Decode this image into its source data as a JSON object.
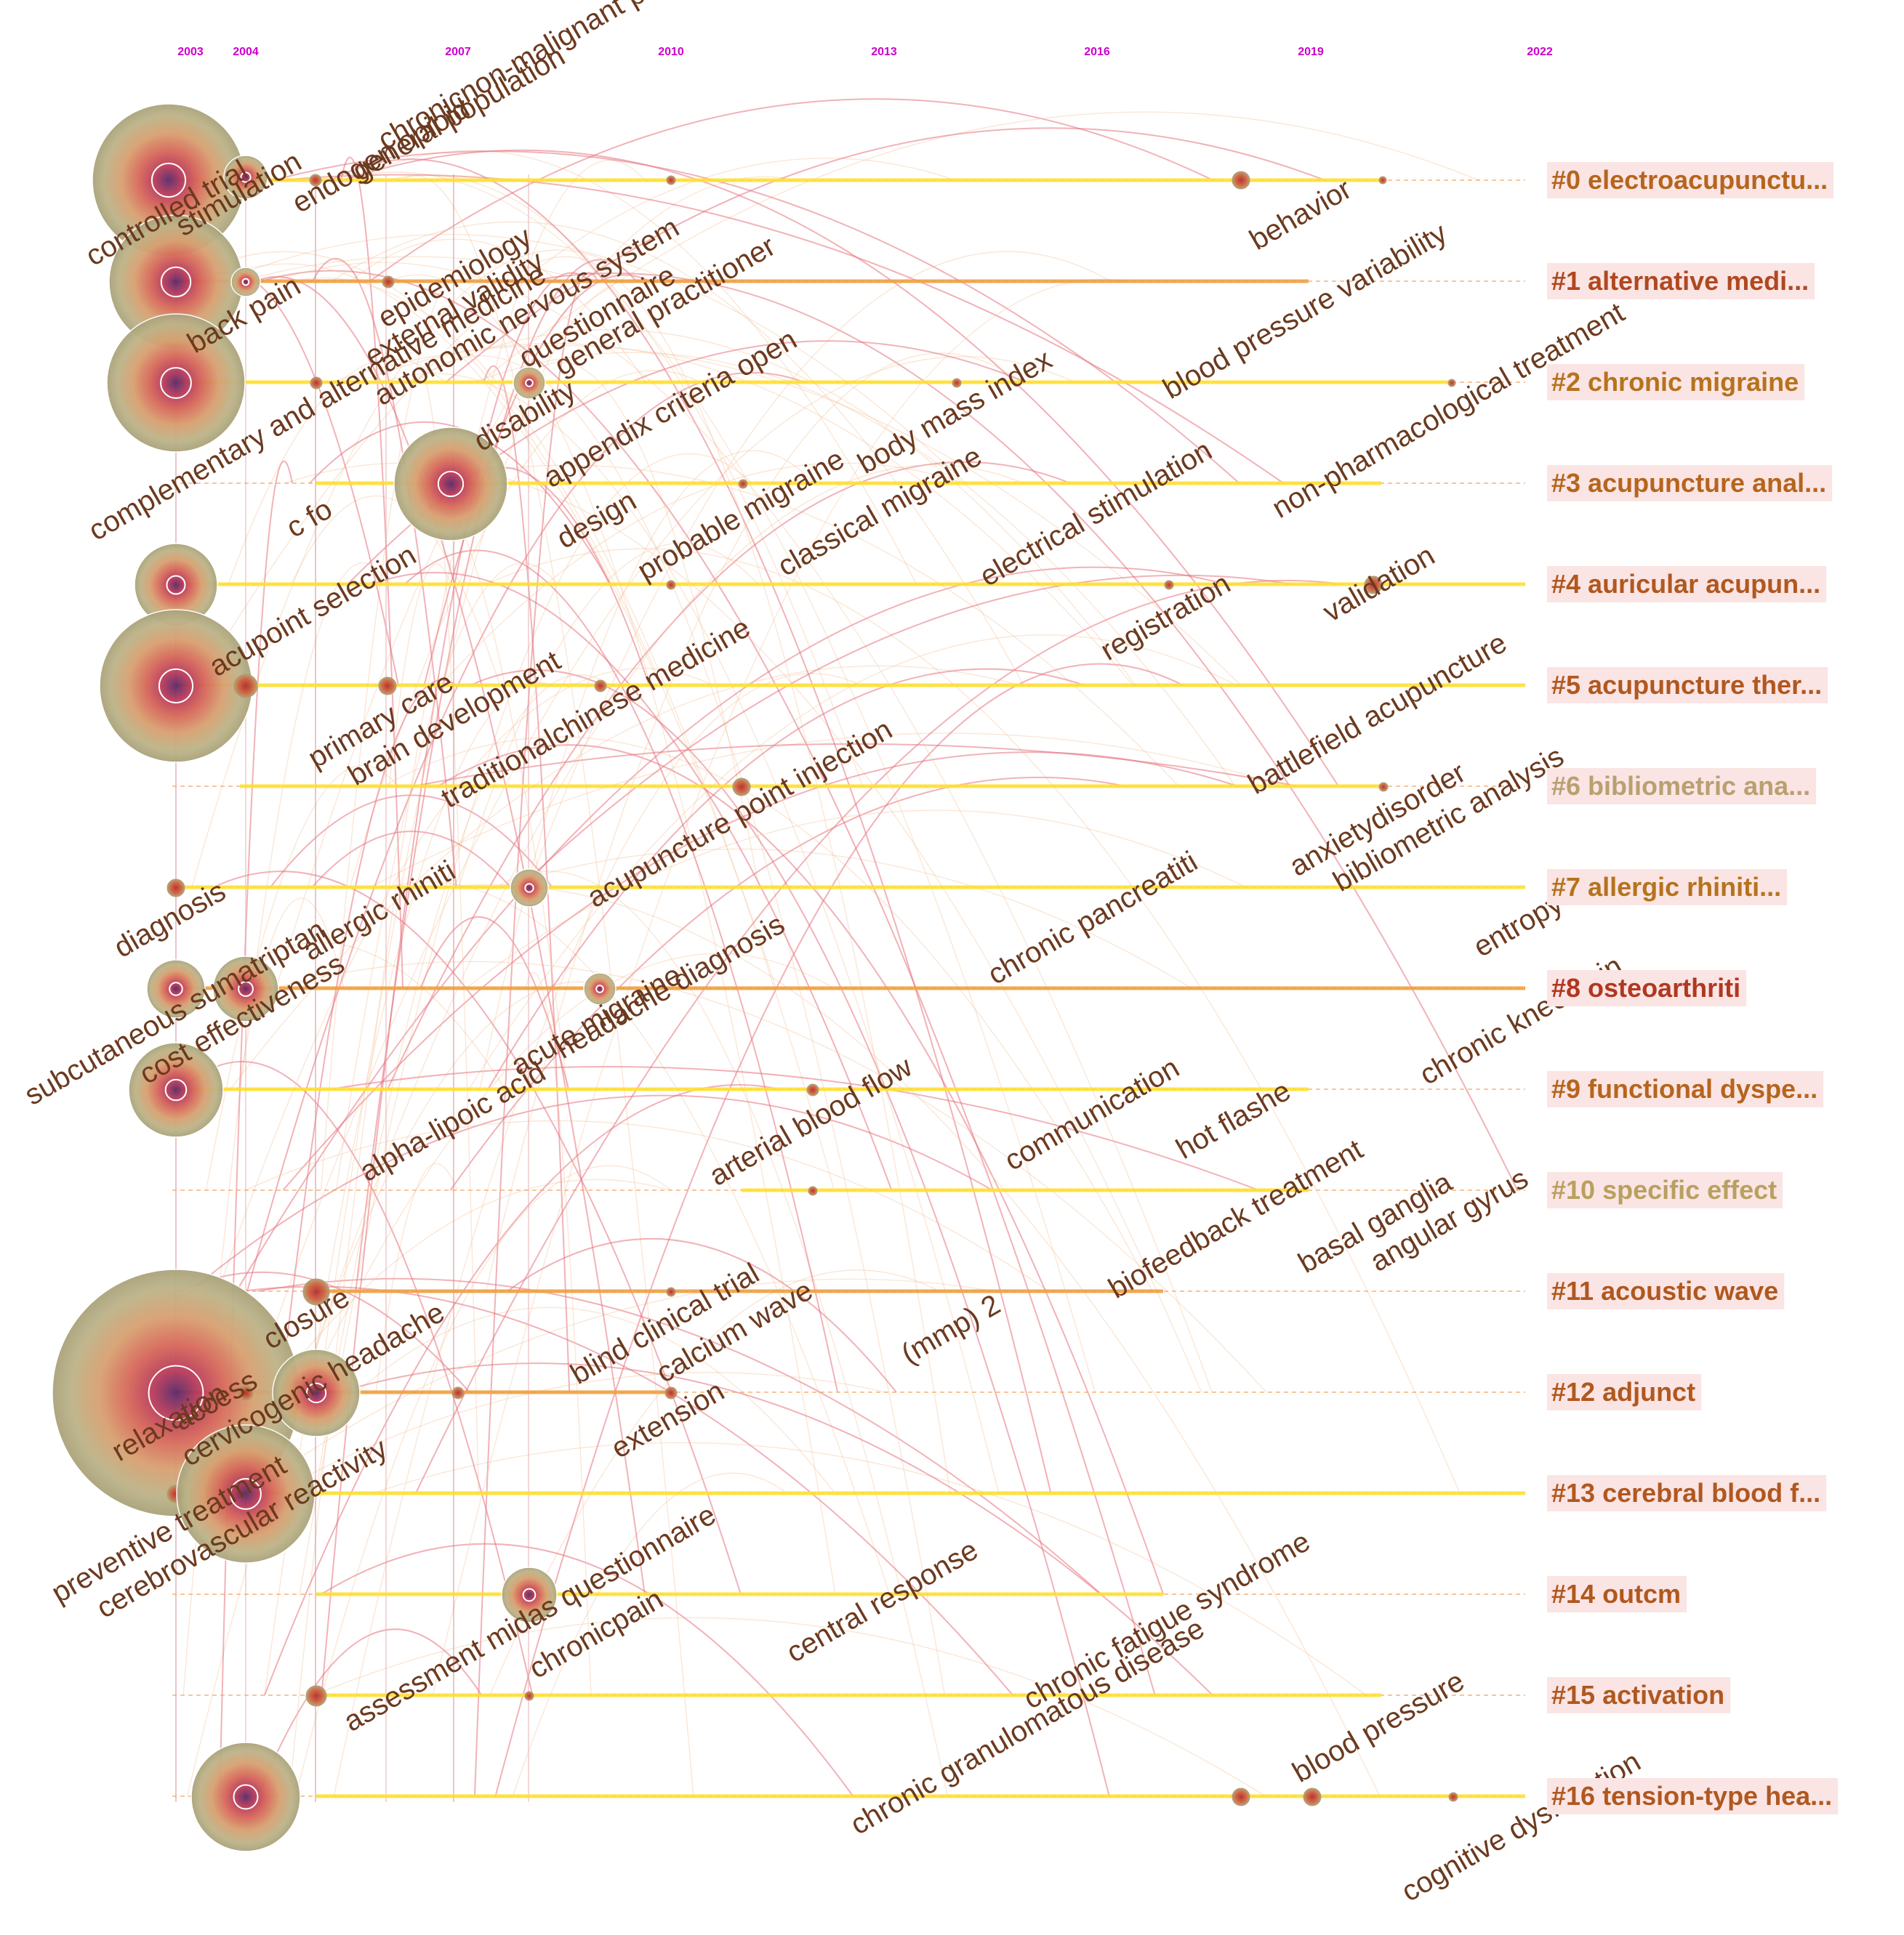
{
  "years": [
    "2003",
    "2004",
    "2007",
    "2010",
    "2013",
    "2016",
    "2019",
    "2022"
  ],
  "colors": {
    "year_label": "#cc00cc",
    "cluster_label_bg": "#fbe4e4",
    "keyword_text": "#6b3a1f",
    "timeline_main": "#ffe033",
    "timeline_dashed": "#f5a05a",
    "link": "#e5737d",
    "node_outer": "#b5ac7e",
    "node_mid": "#e08a5a",
    "node_inner": "#8a2f5a"
  },
  "clusters": [
    {
      "label": "#0 electroacupunctu...",
      "color": "#b5651d"
    },
    {
      "label": "#1 alternative medi...",
      "color": "#b0481f"
    },
    {
      "label": "#2 chronic migraine",
      "color": "#b5731d"
    },
    {
      "label": "#3 acupuncture anal...",
      "color": "#b5651d"
    },
    {
      "label": "#4 auricular acupun...",
      "color": "#b0581f"
    },
    {
      "label": "#5 acupuncture ther...",
      "color": "#b0581f"
    },
    {
      "label": "#6 bibliometric ana...",
      "color": "#b8a070"
    },
    {
      "label": "#7 allergic rhiniti...",
      "color": "#b5731d"
    },
    {
      "label": "#8 osteoarthriti",
      "color": "#b0381f"
    },
    {
      "label": "#9 functional dyspe...",
      "color": "#b5651d"
    },
    {
      "label": "#10 specific effect",
      "color": "#b8a060"
    },
    {
      "label": "#11 acoustic wave",
      "color": "#b0581f"
    },
    {
      "label": "#12 adjunct",
      "color": "#b0581f"
    },
    {
      "label": "#13 cerebral blood f...",
      "color": "#b0581f"
    },
    {
      "label": "#14 outcm",
      "color": "#b0581f"
    },
    {
      "label": "#15 activation",
      "color": "#b0581f"
    },
    {
      "label": "#16 tension-type hea...",
      "color": "#b0581f"
    }
  ],
  "keywords": [
    {
      "text": "controlled trial"
    },
    {
      "text": "stimulation"
    },
    {
      "text": "endogen opioid"
    },
    {
      "text": "general population"
    },
    {
      "text": "chronicnon-malignant pain"
    },
    {
      "text": "behavior"
    },
    {
      "text": "back pain"
    },
    {
      "text": "external validity"
    },
    {
      "text": "epidemiology"
    },
    {
      "text": "autonomic nervous system"
    },
    {
      "text": "complementary and alternative medicine"
    },
    {
      "text": "questionnaire"
    },
    {
      "text": "general practitioner"
    },
    {
      "text": "blood pressure variability"
    },
    {
      "text": "disability"
    },
    {
      "text": "appendix criteria open"
    },
    {
      "text": "body mass index"
    },
    {
      "text": "non-pharmacological treatment"
    },
    {
      "text": "c fo"
    },
    {
      "text": "design"
    },
    {
      "text": "probable migraine"
    },
    {
      "text": "classical migraine"
    },
    {
      "text": "electrical stimulation"
    },
    {
      "text": "acupoint selection"
    },
    {
      "text": "registration"
    },
    {
      "text": "validation"
    },
    {
      "text": "primary care"
    },
    {
      "text": "brain development"
    },
    {
      "text": "traditionalchinese medicine"
    },
    {
      "text": "battlefield acupuncture"
    },
    {
      "text": "acupuncture point injection"
    },
    {
      "text": "anxietydisorder"
    },
    {
      "text": "bibliometric analysis"
    },
    {
      "text": "diagnosis"
    },
    {
      "text": "allergic rhiniti"
    },
    {
      "text": "chronic pancreatiti"
    },
    {
      "text": "entropy"
    },
    {
      "text": "subcutaneous sumatriptan"
    },
    {
      "text": "cost effectiveness"
    },
    {
      "text": "acute migraine"
    },
    {
      "text": "headache diagnosis"
    },
    {
      "text": "chronic knee pain"
    },
    {
      "text": "alpha-lipoic acid"
    },
    {
      "text": "arterial blood flow"
    },
    {
      "text": "communication"
    },
    {
      "text": "hot flashe"
    },
    {
      "text": "biofeedback treatment"
    },
    {
      "text": "basal ganglia"
    },
    {
      "text": "angular gyrus"
    },
    {
      "text": "closure"
    },
    {
      "text": "blind clinical trial"
    },
    {
      "text": "calcium wave"
    },
    {
      "text": "(mmp) 2"
    },
    {
      "text": "cervicogenic headache"
    },
    {
      "text": "relaxation"
    },
    {
      "text": "access"
    },
    {
      "text": "extension"
    },
    {
      "text": "preventive treatment"
    },
    {
      "text": "cerebrovascular reactivity"
    },
    {
      "text": "assessment midas questionnaire"
    },
    {
      "text": "chronicpain"
    },
    {
      "text": "central response"
    },
    {
      "text": "chronic fatigue syndrome"
    },
    {
      "text": "chronic granulomatous disease"
    },
    {
      "text": "blood pressure"
    },
    {
      "text": "cognitive dysfunction"
    }
  ]
}
